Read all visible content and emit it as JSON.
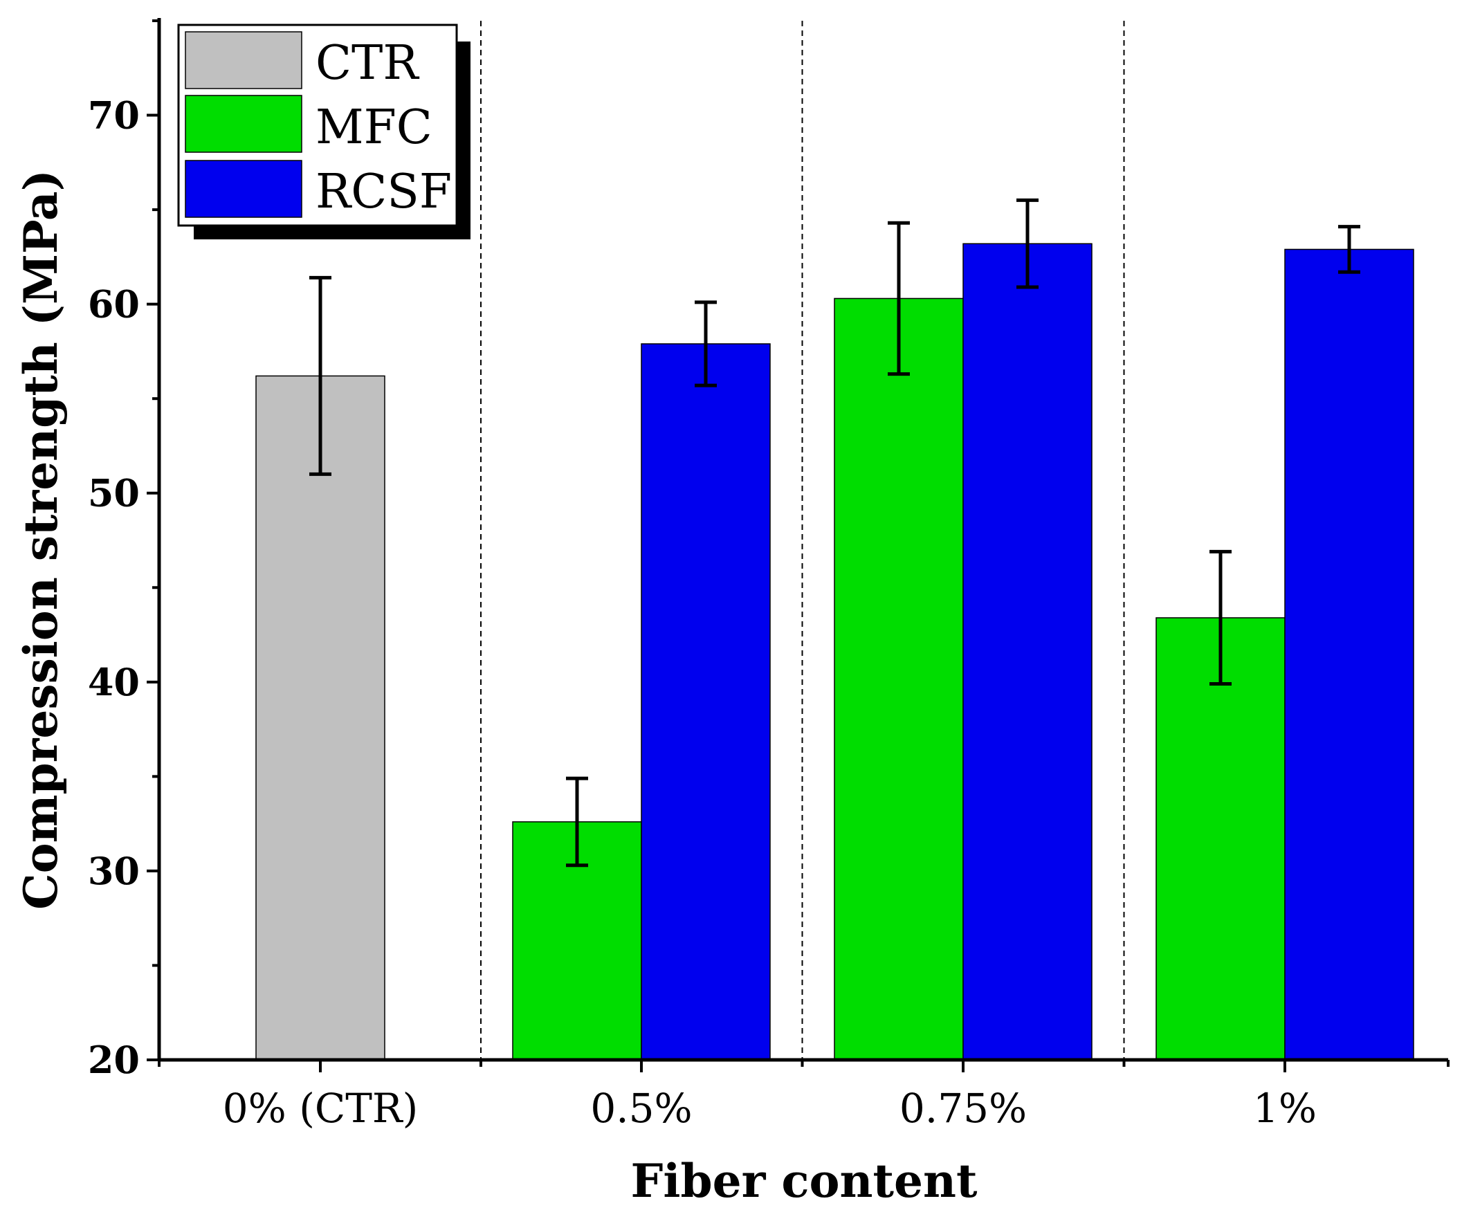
{
  "chart_data": {
    "type": "bar",
    "title": "",
    "xlabel": "Fiber content",
    "ylabel": "Compression strength (MPa)",
    "ylim": [
      20,
      75
    ],
    "yticks": [
      20,
      30,
      40,
      50,
      60,
      70
    ],
    "categories": [
      "0% (CTR)",
      "0.5%",
      "0.75%",
      "1%"
    ],
    "series": [
      {
        "name": "CTR",
        "color": "#c0c0c0",
        "values": [
          56.2,
          null,
          null,
          null
        ],
        "errors": [
          5.2,
          null,
          null,
          null
        ]
      },
      {
        "name": "MFC",
        "color": "#00dd00",
        "values": [
          null,
          32.6,
          60.3,
          43.4
        ],
        "errors": [
          null,
          2.3,
          4.0,
          3.5
        ]
      },
      {
        "name": "RCSF",
        "color": "#0000ee",
        "values": [
          null,
          57.9,
          63.2,
          62.9
        ],
        "errors": [
          null,
          2.2,
          2.3,
          1.2
        ]
      }
    ],
    "legend": {
      "placement": "top-left",
      "entries": [
        "CTR",
        "MFC",
        "RCSF"
      ]
    },
    "grid": false,
    "group_separators": "dashed"
  }
}
